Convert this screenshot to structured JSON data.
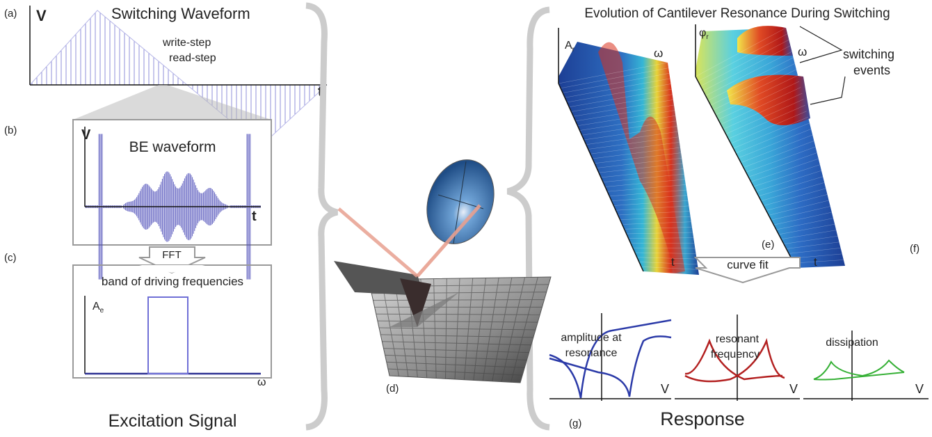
{
  "panels": {
    "a": {
      "label": "(a)",
      "axis_y": "V",
      "title": "Switching Waveform",
      "annotations": [
        "write-step",
        "read-step"
      ],
      "axis_x": "t"
    },
    "b": {
      "label": "(b)",
      "axis_y": "V",
      "title": "BE waveform",
      "axis_x": "t"
    },
    "fft": "FFT",
    "c": {
      "label": "(c)",
      "title": "band of driving frequencies",
      "axis_y": {
        "base": "A",
        "sub": "e"
      },
      "axis_x": "ω"
    },
    "d": {
      "label": "(d)"
    },
    "response_title": "Evolution of Cantilever Resonance During Switching",
    "e": {
      "label": "(e)",
      "axis_y": {
        "base": "A",
        "sub": "r"
      },
      "axis_x": "ω",
      "axis_t": "t"
    },
    "f": {
      "label": "(f)",
      "axis_y": {
        "base": "φ",
        "sub": "r"
      },
      "axis_x": "ω",
      "axis_t": "t",
      "annotation": [
        "switching",
        "events"
      ]
    },
    "curve_fit": "curve fit",
    "g": {
      "label": "(g)",
      "plots": [
        {
          "title": [
            "amplitude at",
            "resonance"
          ],
          "axis_x": "V"
        },
        {
          "title": [
            "resonant",
            "frequency"
          ],
          "axis_x": "V"
        },
        {
          "title": [
            "dissipation"
          ],
          "axis_x": "V"
        }
      ]
    }
  },
  "sections": {
    "excitation": "Excitation Signal",
    "response": "Response"
  }
}
